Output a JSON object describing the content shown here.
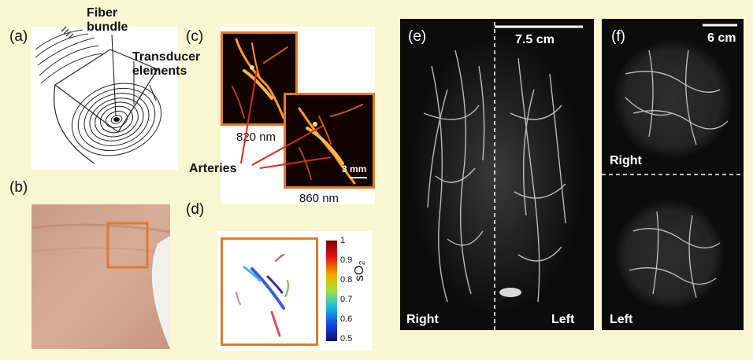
{
  "panel_labels": {
    "a": "(a)",
    "b": "(b)",
    "c": "(c)",
    "d": "(d)",
    "e": "(e)",
    "f": "(f)"
  },
  "panel_a": {
    "fiber_bundle": [
      "Fiber",
      "bundle"
    ],
    "transducer_elements": [
      "Transducer",
      "elements"
    ]
  },
  "panel_c": {
    "wavelength_1": "820 nm",
    "wavelength_2": "860 nm",
    "scale_bar": "3 mm",
    "arteries_label": "Arteries"
  },
  "panel_d": {
    "colorbar_label": "sO₂",
    "ticks": [
      "1",
      "0.9",
      "0.8",
      "0.7",
      "0.6",
      "0.5"
    ]
  },
  "panel_e": {
    "scale_bar": "7.5 cm",
    "left_label": "Right",
    "right_label": "Left"
  },
  "panel_f": {
    "scale_bar": "6 cm",
    "top_label": "Right",
    "bottom_label": "Left"
  },
  "colors": {
    "background": "#f8f7d2",
    "frame_orange": "#e07a2e",
    "arrow_red": "#d42a1e"
  }
}
